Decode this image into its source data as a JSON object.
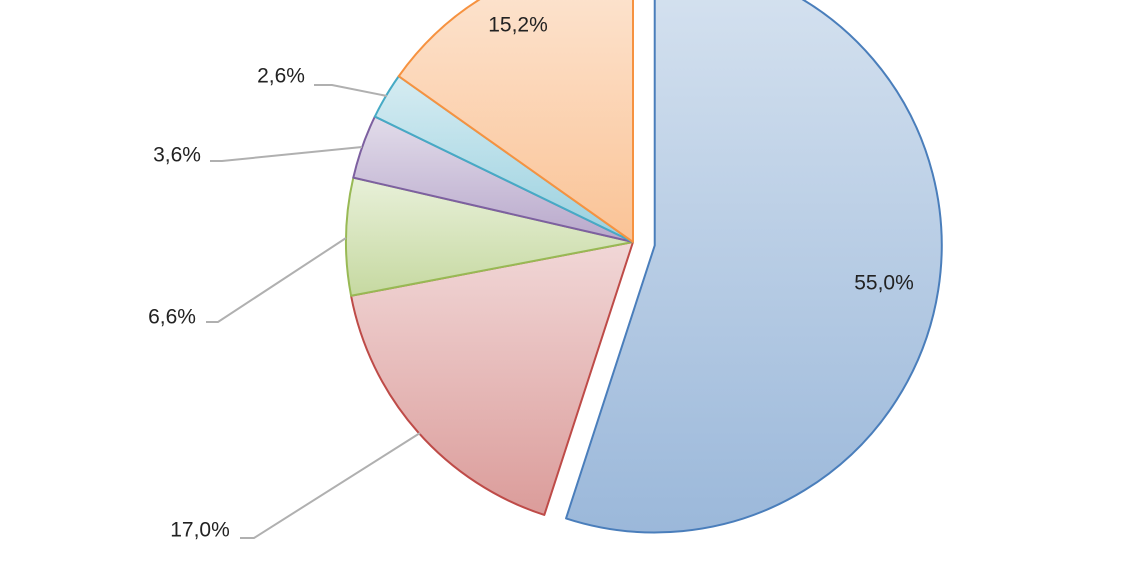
{
  "chart_data": {
    "type": "pie",
    "values": [
      55.0,
      17.0,
      6.6,
      3.6,
      2.6,
      15.2
    ],
    "value_labels": [
      "55,0%",
      "17,0%",
      "6,6%",
      "3,6%",
      "2,6%",
      "15,2%"
    ],
    "colors": [
      "#4a7ebb",
      "#be4b48",
      "#98b954",
      "#7d60a0",
      "#46aac5",
      "#f69240"
    ],
    "exploded": [
      true,
      false,
      false,
      false,
      false,
      false
    ]
  }
}
